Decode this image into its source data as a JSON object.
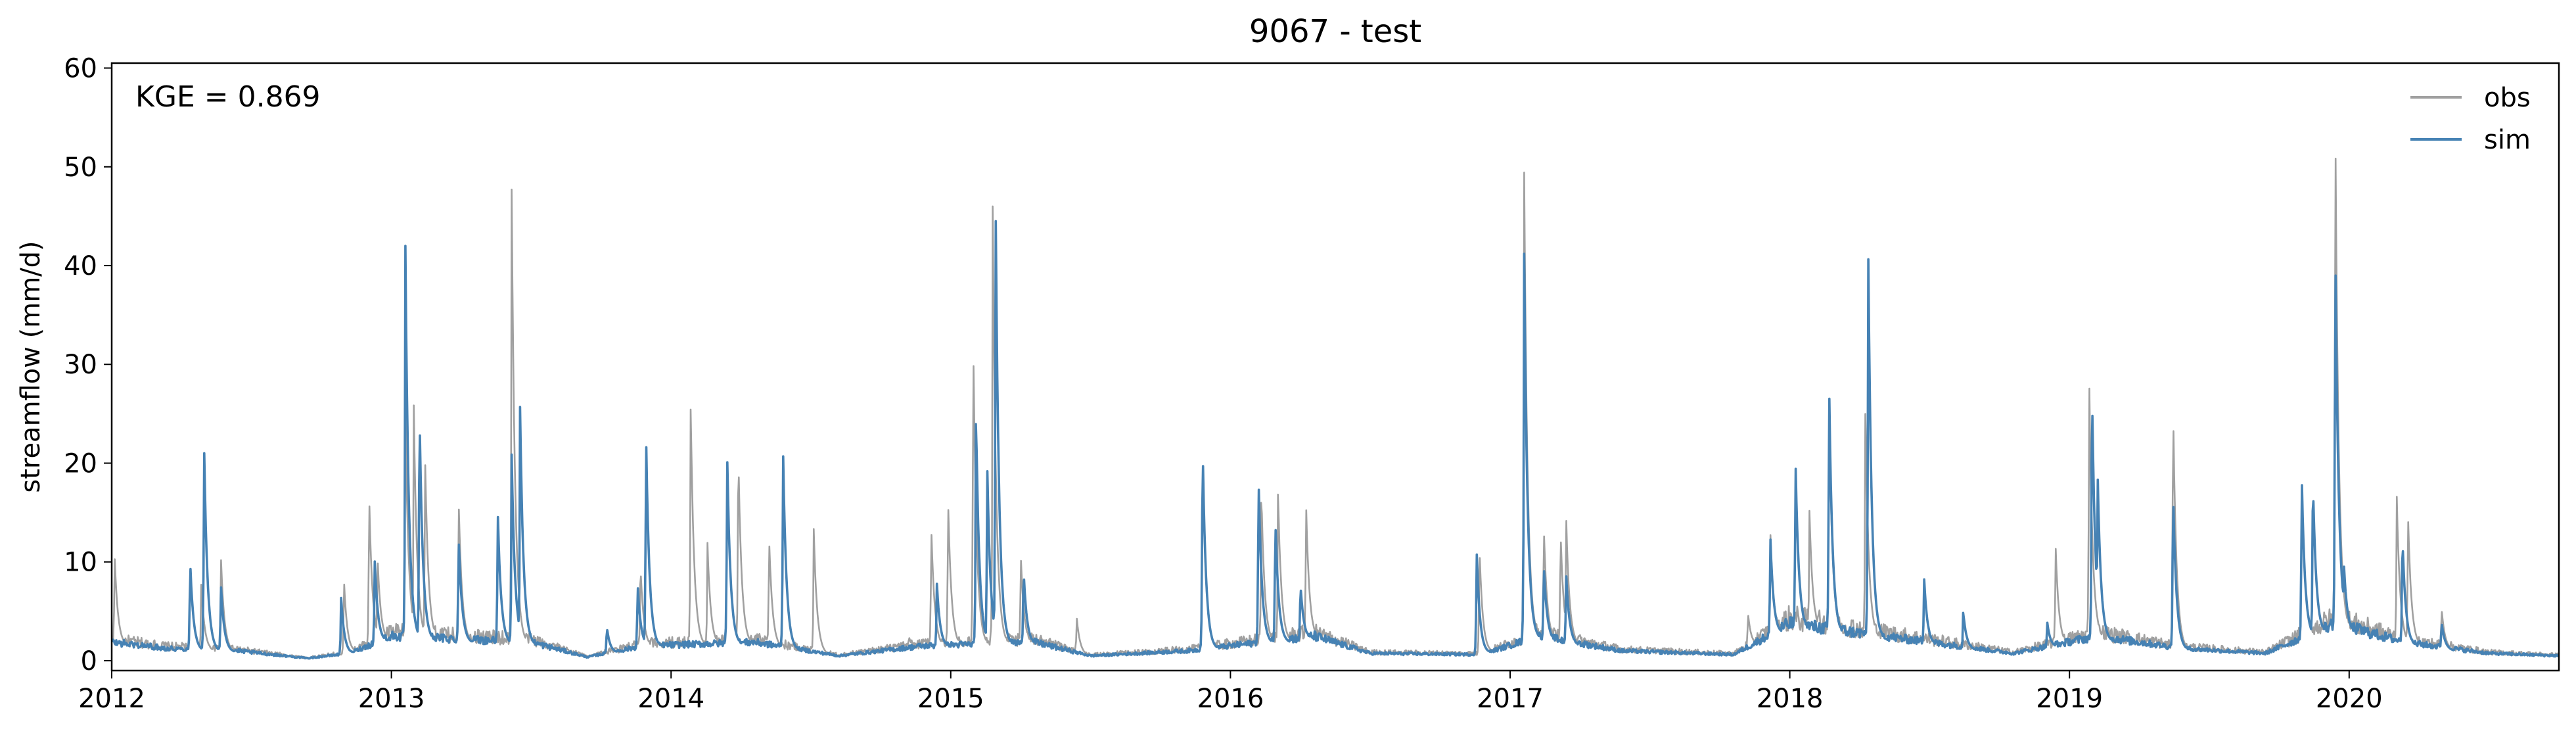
{
  "chart_data": {
    "type": "line",
    "title": "9067 - test",
    "xlabel": "",
    "ylabel": "streamflow (mm/d)",
    "annotation": "KGE = 0.869",
    "xlim": [
      2012.0,
      2020.75
    ],
    "ylim": [
      -1,
      60.5
    ],
    "x_ticks": [
      2012,
      2013,
      2014,
      2015,
      2016,
      2017,
      2018,
      2019,
      2020
    ],
    "x_tick_labels": [
      "2012",
      "2013",
      "2014",
      "2015",
      "2016",
      "2017",
      "2018",
      "2019",
      "2020"
    ],
    "y_ticks": [
      0,
      10,
      20,
      30,
      40,
      50,
      60
    ],
    "y_tick_labels": [
      "0",
      "10",
      "20",
      "30",
      "40",
      "50",
      "60"
    ],
    "legend_position": "top-right",
    "colors": {
      "obs": "#a0a0a0",
      "sim": "#4682b4"
    },
    "baseflow": {
      "x": [
        2012.0,
        2012.2,
        2012.45,
        2012.7,
        2012.85,
        2013.0,
        2013.5,
        2013.7,
        2013.9,
        2014.3,
        2014.6,
        2014.9,
        2015.3,
        2015.5,
        2015.85,
        2016.3,
        2016.5,
        2016.9,
        2017.1,
        2017.4,
        2017.8,
        2018.0,
        2018.5,
        2018.8,
        2019.1,
        2019.4,
        2019.7,
        2019.95,
        2020.2,
        2020.5,
        2020.75
      ],
      "values": [
        1.5,
        1.0,
        0.8,
        0.2,
        0.6,
        2.0,
        1.5,
        0.3,
        1.2,
        1.5,
        0.4,
        1.2,
        1.5,
        0.4,
        0.8,
        2.0,
        0.6,
        0.5,
        2.0,
        0.8,
        0.5,
        3.0,
        1.5,
        0.6,
        2.0,
        1.0,
        0.6,
        3.0,
        1.5,
        0.6,
        0.4
      ]
    },
    "series": [
      {
        "name": "obs",
        "peaks": [
          {
            "x": 2012.01,
            "y": 11.0
          },
          {
            "x": 2012.28,
            "y": 10.0
          },
          {
            "x": 2012.32,
            "y": 8.0
          },
          {
            "x": 2012.39,
            "y": 11.0
          },
          {
            "x": 2012.83,
            "y": 8.5
          },
          {
            "x": 2012.92,
            "y": 17.5
          },
          {
            "x": 2012.95,
            "y": 11.0
          },
          {
            "x": 2013.05,
            "y": 25.0
          },
          {
            "x": 2013.08,
            "y": 26.0
          },
          {
            "x": 2013.12,
            "y": 21.5
          },
          {
            "x": 2013.24,
            "y": 17.0
          },
          {
            "x": 2013.43,
            "y": 48.0
          },
          {
            "x": 2013.89,
            "y": 10.0
          },
          {
            "x": 2014.07,
            "y": 26.5
          },
          {
            "x": 2014.13,
            "y": 12.0
          },
          {
            "x": 2014.2,
            "y": 22.0
          },
          {
            "x": 2014.24,
            "y": 22.0
          },
          {
            "x": 2014.35,
            "y": 13.0
          },
          {
            "x": 2014.51,
            "y": 13.5
          },
          {
            "x": 2014.85,
            "y": 2.5
          },
          {
            "x": 2014.93,
            "y": 14.0
          },
          {
            "x": 2014.99,
            "y": 17.0
          },
          {
            "x": 2015.08,
            "y": 34.0
          },
          {
            "x": 2015.15,
            "y": 46.0
          },
          {
            "x": 2015.25,
            "y": 11.0
          },
          {
            "x": 2015.45,
            "y": 4.5
          },
          {
            "x": 2015.9,
            "y": 22.0
          },
          {
            "x": 2016.11,
            "y": 18.0
          },
          {
            "x": 2016.17,
            "y": 17.5
          },
          {
            "x": 2016.27,
            "y": 16.5
          },
          {
            "x": 2016.89,
            "y": 12.0
          },
          {
            "x": 2017.05,
            "y": 51.0
          },
          {
            "x": 2017.12,
            "y": 14.0
          },
          {
            "x": 2017.18,
            "y": 13.5
          },
          {
            "x": 2017.2,
            "y": 15.0
          },
          {
            "x": 2017.85,
            "y": 5.0
          },
          {
            "x": 2017.93,
            "y": 13.5
          },
          {
            "x": 2018.07,
            "y": 15.5
          },
          {
            "x": 2018.14,
            "y": 27.0
          },
          {
            "x": 2018.27,
            "y": 26.0
          },
          {
            "x": 2018.95,
            "y": 12.0
          },
          {
            "x": 2019.07,
            "y": 30.0
          },
          {
            "x": 2019.37,
            "y": 27.0
          },
          {
            "x": 2019.83,
            "y": 19.0
          },
          {
            "x": 2019.95,
            "y": 57.5
          },
          {
            "x": 2020.17,
            "y": 17.0
          },
          {
            "x": 2020.21,
            "y": 15.5
          },
          {
            "x": 2020.33,
            "y": 5.5
          }
        ]
      },
      {
        "name": "sim",
        "peaks": [
          {
            "x": 2012.28,
            "y": 10.5
          },
          {
            "x": 2012.33,
            "y": 22.5
          },
          {
            "x": 2012.39,
            "y": 8.0
          },
          {
            "x": 2012.82,
            "y": 6.5
          },
          {
            "x": 2012.94,
            "y": 10.5
          },
          {
            "x": 2013.05,
            "y": 42.0
          },
          {
            "x": 2013.1,
            "y": 26.5
          },
          {
            "x": 2013.24,
            "y": 13.0
          },
          {
            "x": 2013.38,
            "y": 15.5
          },
          {
            "x": 2013.43,
            "y": 21.0
          },
          {
            "x": 2013.46,
            "y": 26.0
          },
          {
            "x": 2013.77,
            "y": 3.5
          },
          {
            "x": 2013.88,
            "y": 8.0
          },
          {
            "x": 2013.91,
            "y": 24.0
          },
          {
            "x": 2014.2,
            "y": 22.0
          },
          {
            "x": 2014.4,
            "y": 22.0
          },
          {
            "x": 2014.95,
            "y": 8.0
          },
          {
            "x": 2015.09,
            "y": 26.0
          },
          {
            "x": 2015.13,
            "y": 20.5
          },
          {
            "x": 2015.16,
            "y": 48.0
          },
          {
            "x": 2015.26,
            "y": 9.5
          },
          {
            "x": 2015.9,
            "y": 23.0
          },
          {
            "x": 2016.1,
            "y": 19.5
          },
          {
            "x": 2016.16,
            "y": 15.0
          },
          {
            "x": 2016.25,
            "y": 8.0
          },
          {
            "x": 2016.88,
            "y": 11.5
          },
          {
            "x": 2017.05,
            "y": 42.5
          },
          {
            "x": 2017.12,
            "y": 10.0
          },
          {
            "x": 2017.2,
            "y": 9.0
          },
          {
            "x": 2017.93,
            "y": 13.0
          },
          {
            "x": 2018.02,
            "y": 21.0
          },
          {
            "x": 2018.14,
            "y": 29.5
          },
          {
            "x": 2018.28,
            "y": 43.5
          },
          {
            "x": 2018.48,
            "y": 8.5
          },
          {
            "x": 2018.62,
            "y": 5.0
          },
          {
            "x": 2018.92,
            "y": 4.0
          },
          {
            "x": 2019.08,
            "y": 29.0
          },
          {
            "x": 2019.1,
            "y": 20.0
          },
          {
            "x": 2019.37,
            "y": 18.0
          },
          {
            "x": 2019.83,
            "y": 19.5
          },
          {
            "x": 2019.87,
            "y": 19.0
          },
          {
            "x": 2019.95,
            "y": 44.0
          },
          {
            "x": 2019.98,
            "y": 10.5
          },
          {
            "x": 2020.19,
            "y": 13.0
          },
          {
            "x": 2020.33,
            "y": 4.0
          }
        ]
      }
    ]
  }
}
